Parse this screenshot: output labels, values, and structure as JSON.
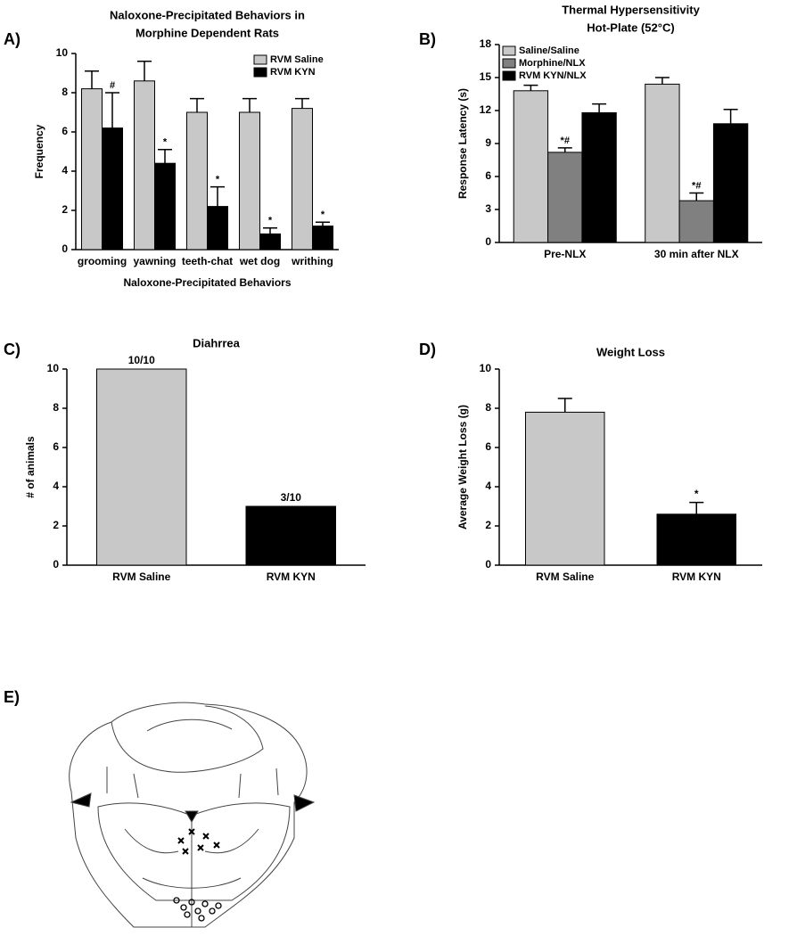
{
  "chart_data": [
    {
      "type": "bar",
      "panel": "A)",
      "title": [
        "Naloxone-Precipitated Behaviors in",
        "Morphine Dependent Rats"
      ],
      "y_label": "Frequency",
      "x_label": "Naloxone-Precipitated Behaviors",
      "categories": [
        "grooming",
        "yawning",
        "teeth-chat",
        "wet dog",
        "writhing"
      ],
      "series": [
        {
          "name": "RVM Saline",
          "color": "#c8c8c8",
          "values": [
            8.2,
            8.6,
            7.0,
            7.0,
            7.2
          ],
          "errors": [
            0.9,
            1.0,
            0.7,
            0.7,
            0.5
          ]
        },
        {
          "name": "RVM KYN",
          "color": "#000000",
          "values": [
            6.2,
            4.4,
            2.2,
            0.8,
            1.2
          ],
          "errors": [
            1.8,
            0.7,
            1.0,
            0.3,
            0.2
          ],
          "annotations": [
            "#",
            "*",
            "*",
            "*",
            "*"
          ]
        }
      ],
      "ylim": [
        0,
        10
      ],
      "yticks": [
        0,
        2,
        4,
        6,
        8,
        10
      ],
      "legend": "upper right"
    },
    {
      "type": "bar",
      "panel": "B)",
      "title": [
        "Thermal Hypersensitivity",
        "Hot-Plate (52°C)"
      ],
      "y_label": "Response Latency (s)",
      "categories": [
        "Pre-NLX",
        "30 min after NLX"
      ],
      "series": [
        {
          "name": "Saline/Saline",
          "color": "#c8c8c8",
          "values": [
            13.8,
            14.4
          ],
          "errors": [
            0.5,
            0.6
          ]
        },
        {
          "name": "Morphine/NLX",
          "color": "#808080",
          "values": [
            8.2,
            3.8
          ],
          "errors": [
            0.4,
            0.7
          ],
          "annotations": [
            "*#",
            "*#"
          ]
        },
        {
          "name": "RVM KYN/NLX",
          "color": "#000000",
          "values": [
            11.8,
            10.8
          ],
          "errors": [
            0.8,
            1.3
          ]
        }
      ],
      "ylim": [
        0,
        18
      ],
      "yticks": [
        0,
        3,
        6,
        9,
        12,
        15,
        18
      ],
      "legend": "upper left"
    },
    {
      "type": "bar",
      "panel": "C)",
      "title": [
        "Diahrrea"
      ],
      "y_label": "# of animals",
      "categories": [
        "RVM Saline",
        "RVM KYN"
      ],
      "values": [
        10,
        3
      ],
      "value_labels": [
        "10/10",
        "3/10"
      ],
      "colors": [
        "#c8c8c8",
        "#000000"
      ],
      "ylim": [
        0,
        10
      ],
      "yticks": [
        0,
        2,
        4,
        6,
        8,
        10
      ]
    },
    {
      "type": "bar",
      "panel": "D)",
      "title": [
        "Weight Loss"
      ],
      "y_label": "Average Weight Loss (g)",
      "categories": [
        "RVM Saline",
        "RVM KYN"
      ],
      "values": [
        7.8,
        2.6
      ],
      "errors": [
        0.7,
        0.6
      ],
      "annotations": [
        null,
        "*"
      ],
      "colors": [
        "#c8c8c8",
        "#000000"
      ],
      "ylim": [
        0,
        10
      ],
      "yticks": [
        0,
        2,
        4,
        6,
        8,
        10
      ]
    }
  ],
  "figure_e": {
    "panel": "E)"
  }
}
